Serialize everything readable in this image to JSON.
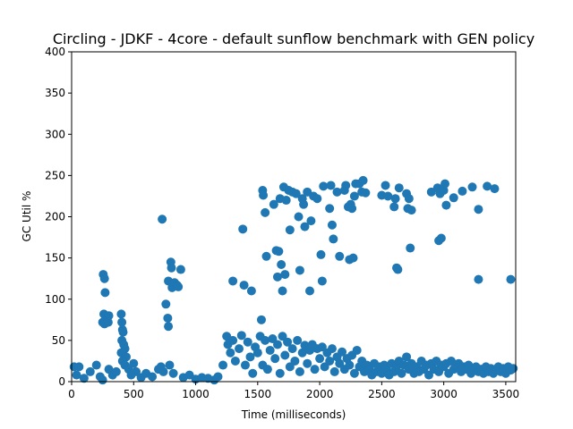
{
  "chart_data": {
    "type": "scatter",
    "title": "Circling - JDKF - 4core -  default sunflow benchmark with GEN policy",
    "xlabel": "Time (milliseconds)",
    "ylabel": "GC Util %",
    "xlim": [
      0,
      3580
    ],
    "ylim": [
      0,
      400
    ],
    "xticks": [
      0,
      500,
      1000,
      1500,
      2000,
      2500,
      3000,
      3500
    ],
    "yticks": [
      0,
      50,
      100,
      150,
      200,
      250,
      300,
      350,
      400
    ],
    "grid": false,
    "color": "#1f77b4",
    "points": [
      [
        20,
        18
      ],
      [
        60,
        18
      ],
      [
        40,
        8
      ],
      [
        100,
        4
      ],
      [
        150,
        12
      ],
      [
        200,
        20
      ],
      [
        230,
        6
      ],
      [
        250,
        2
      ],
      [
        300,
        15
      ],
      [
        330,
        8
      ],
      [
        255,
        130
      ],
      [
        265,
        125
      ],
      [
        270,
        108
      ],
      [
        260,
        82
      ],
      [
        270,
        80
      ],
      [
        280,
        75
      ],
      [
        300,
        80
      ],
      [
        250,
        72
      ],
      [
        265,
        70
      ],
      [
        295,
        72
      ],
      [
        400,
        82
      ],
      [
        405,
        72
      ],
      [
        410,
        63
      ],
      [
        415,
        60
      ],
      [
        405,
        50
      ],
      [
        420,
        45
      ],
      [
        430,
        40
      ],
      [
        400,
        35
      ],
      [
        440,
        30
      ],
      [
        410,
        25
      ],
      [
        430,
        20
      ],
      [
        460,
        15
      ],
      [
        500,
        22
      ],
      [
        520,
        12
      ],
      [
        480,
        8
      ],
      [
        560,
        5
      ],
      [
        600,
        10
      ],
      [
        650,
        6
      ],
      [
        700,
        15
      ],
      [
        360,
        12
      ],
      [
        730,
        197
      ],
      [
        760,
        94
      ],
      [
        775,
        77
      ],
      [
        780,
        67
      ],
      [
        780,
        122
      ],
      [
        800,
        145
      ],
      [
        805,
        138
      ],
      [
        810,
        114
      ],
      [
        830,
        120
      ],
      [
        850,
        117
      ],
      [
        860,
        115
      ],
      [
        880,
        136
      ],
      [
        720,
        18
      ],
      [
        740,
        12
      ],
      [
        790,
        20
      ],
      [
        820,
        10
      ],
      [
        900,
        5
      ],
      [
        950,
        8
      ],
      [
        1000,
        3
      ],
      [
        1050,
        5
      ],
      [
        1100,
        4
      ],
      [
        1150,
        2
      ],
      [
        1180,
        6
      ],
      [
        1220,
        20
      ],
      [
        1380,
        185
      ],
      [
        1540,
        232
      ],
      [
        1545,
        226
      ],
      [
        1560,
        205
      ],
      [
        1570,
        152
      ],
      [
        1300,
        122
      ],
      [
        1390,
        117
      ],
      [
        1450,
        110
      ],
      [
        1530,
        75
      ],
      [
        1630,
        215
      ],
      [
        1650,
        159
      ],
      [
        1660,
        127
      ],
      [
        1670,
        158
      ],
      [
        1690,
        142
      ],
      [
        1700,
        110
      ],
      [
        1720,
        130
      ],
      [
        1680,
        222
      ],
      [
        1710,
        236
      ],
      [
        1730,
        220
      ],
      [
        1750,
        232
      ],
      [
        1760,
        184
      ],
      [
        1780,
        230
      ],
      [
        1810,
        228
      ],
      [
        1830,
        200
      ],
      [
        1840,
        135
      ],
      [
        1860,
        222
      ],
      [
        1870,
        215
      ],
      [
        1880,
        188
      ],
      [
        1900,
        230
      ],
      [
        1920,
        110
      ],
      [
        1930,
        195
      ],
      [
        1950,
        225
      ],
      [
        1980,
        222
      ],
      [
        2010,
        154
      ],
      [
        2020,
        122
      ],
      [
        2030,
        237
      ],
      [
        2080,
        210
      ],
      [
        2090,
        238
      ],
      [
        2100,
        190
      ],
      [
        2110,
        173
      ],
      [
        2140,
        230
      ],
      [
        2160,
        152
      ],
      [
        2200,
        232
      ],
      [
        2210,
        238
      ],
      [
        2230,
        212
      ],
      [
        2240,
        148
      ],
      [
        2250,
        215
      ],
      [
        2260,
        210
      ],
      [
        2270,
        150
      ],
      [
        2290,
        240
      ],
      [
        2280,
        225
      ],
      [
        2320,
        240
      ],
      [
        2340,
        230
      ],
      [
        2350,
        244
      ],
      [
        2370,
        229
      ],
      [
        2500,
        226
      ],
      [
        2530,
        238
      ],
      [
        2550,
        225
      ],
      [
        2600,
        212
      ],
      [
        2610,
        222
      ],
      [
        2620,
        138
      ],
      [
        2630,
        136
      ],
      [
        2640,
        235
      ],
      [
        2700,
        228
      ],
      [
        2710,
        210
      ],
      [
        2720,
        222
      ],
      [
        2730,
        162
      ],
      [
        2740,
        208
      ],
      [
        2900,
        230
      ],
      [
        2950,
        235
      ],
      [
        2960,
        171
      ],
      [
        2980,
        174
      ],
      [
        2970,
        228
      ],
      [
        3000,
        232
      ],
      [
        3010,
        240
      ],
      [
        3020,
        214
      ],
      [
        3080,
        223
      ],
      [
        3150,
        231
      ],
      [
        3230,
        236
      ],
      [
        3280,
        209
      ],
      [
        3280,
        124
      ],
      [
        3350,
        237
      ],
      [
        3410,
        234
      ],
      [
        3540,
        124
      ],
      [
        1250,
        55
      ],
      [
        1260,
        45
      ],
      [
        1280,
        35
      ],
      [
        1300,
        50
      ],
      [
        1320,
        25
      ],
      [
        1350,
        40
      ],
      [
        1370,
        56
      ],
      [
        1400,
        20
      ],
      [
        1420,
        48
      ],
      [
        1440,
        30
      ],
      [
        1460,
        10
      ],
      [
        1480,
        42
      ],
      [
        1500,
        35
      ],
      [
        1520,
        55
      ],
      [
        1540,
        20
      ],
      [
        1560,
        50
      ],
      [
        1580,
        15
      ],
      [
        1600,
        38
      ],
      [
        1620,
        52
      ],
      [
        1640,
        28
      ],
      [
        1660,
        45
      ],
      [
        1680,
        10
      ],
      [
        1700,
        55
      ],
      [
        1720,
        32
      ],
      [
        1740,
        48
      ],
      [
        1760,
        18
      ],
      [
        1780,
        40
      ],
      [
        1800,
        25
      ],
      [
        1820,
        50
      ],
      [
        1840,
        12
      ],
      [
        1860,
        35
      ],
      [
        1880,
        44
      ],
      [
        1900,
        22
      ],
      [
        1920,
        38
      ],
      [
        1940,
        45
      ],
      [
        1960,
        15
      ],
      [
        1980,
        40
      ],
      [
        2000,
        28
      ],
      [
        2020,
        42
      ],
      [
        2040,
        18
      ],
      [
        2060,
        35
      ],
      [
        2080,
        25
      ],
      [
        2100,
        40
      ],
      [
        2120,
        12
      ],
      [
        2140,
        30
      ],
      [
        2160,
        22
      ],
      [
        2180,
        36
      ],
      [
        2200,
        15
      ],
      [
        2220,
        28
      ],
      [
        2240,
        20
      ],
      [
        2260,
        32
      ],
      [
        2280,
        10
      ],
      [
        2300,
        38
      ],
      [
        2320,
        18
      ],
      [
        2340,
        25
      ],
      [
        2360,
        12
      ],
      [
        2380,
        20
      ],
      [
        2400,
        15
      ],
      [
        2420,
        8
      ],
      [
        2440,
        22
      ],
      [
        2460,
        12
      ],
      [
        2480,
        18
      ],
      [
        2500,
        10
      ],
      [
        2520,
        20
      ],
      [
        2540,
        15
      ],
      [
        2560,
        8
      ],
      [
        2580,
        22
      ],
      [
        2600,
        12
      ],
      [
        2620,
        18
      ],
      [
        2640,
        25
      ],
      [
        2660,
        10
      ],
      [
        2680,
        20
      ],
      [
        2700,
        30
      ],
      [
        2720,
        15
      ],
      [
        2740,
        22
      ],
      [
        2760,
        10
      ],
      [
        2780,
        18
      ],
      [
        2800,
        12
      ],
      [
        2820,
        25
      ],
      [
        2840,
        15
      ],
      [
        2860,
        20
      ],
      [
        2880,
        8
      ],
      [
        2900,
        22
      ],
      [
        2920,
        15
      ],
      [
        2940,
        25
      ],
      [
        2960,
        12
      ],
      [
        2980,
        20
      ],
      [
        3000,
        18
      ],
      [
        3020,
        22
      ],
      [
        3040,
        10
      ],
      [
        3060,
        25
      ],
      [
        3080,
        15
      ],
      [
        3100,
        20
      ],
      [
        3120,
        22
      ],
      [
        3140,
        12
      ],
      [
        3160,
        18
      ],
      [
        3180,
        15
      ],
      [
        3200,
        20
      ],
      [
        3220,
        10
      ],
      [
        3240,
        15
      ],
      [
        3260,
        18
      ],
      [
        3280,
        12
      ],
      [
        3300,
        15
      ],
      [
        3320,
        10
      ],
      [
        3340,
        18
      ],
      [
        3360,
        12
      ],
      [
        3380,
        16
      ],
      [
        3400,
        10
      ],
      [
        3420,
        15
      ],
      [
        3440,
        18
      ],
      [
        3460,
        12
      ],
      [
        3480,
        16
      ],
      [
        3500,
        10
      ],
      [
        3520,
        18
      ],
      [
        3540,
        14
      ],
      [
        3560,
        16
      ]
    ]
  }
}
